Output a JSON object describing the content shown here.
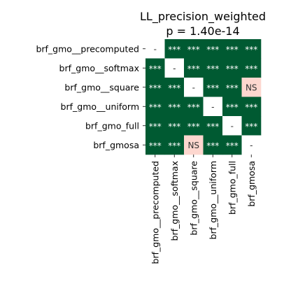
{
  "chart_data": {
    "type": "heatmap",
    "title": "LL_precision_weighted",
    "subtitle": "p = 1.40e-14",
    "rows": [
      "brf_gmo__precomputed",
      "brf_gmo__softmax",
      "brf_gmo__square",
      "brf_gmo__uniform",
      "brf_gmo_full",
      "brf_gmosa"
    ],
    "columns": [
      "brf_gmo__precomputed",
      "brf_gmo__softmax",
      "brf_gmo__square",
      "brf_gmo__uniform",
      "brf_gmo_full",
      "brf_gmosa"
    ],
    "cells": [
      [
        "-",
        "***",
        "***",
        "***",
        "***",
        "***"
      ],
      [
        "***",
        "-",
        "***",
        "***",
        "***",
        "***"
      ],
      [
        "***",
        "***",
        "-",
        "***",
        "***",
        "NS"
      ],
      [
        "***",
        "***",
        "***",
        "-",
        "***",
        "***"
      ],
      [
        "***",
        "***",
        "***",
        "***",
        "-",
        "***"
      ],
      [
        "***",
        "***",
        "NS",
        "***",
        "***",
        "-"
      ]
    ],
    "colors": {
      "significant": "#005a32",
      "not_significant": "#fdd7cf",
      "diagonal": "#ffffff",
      "significant_text": "#ffffff",
      "other_text": "#333333"
    },
    "grid": false,
    "legend": "none"
  }
}
